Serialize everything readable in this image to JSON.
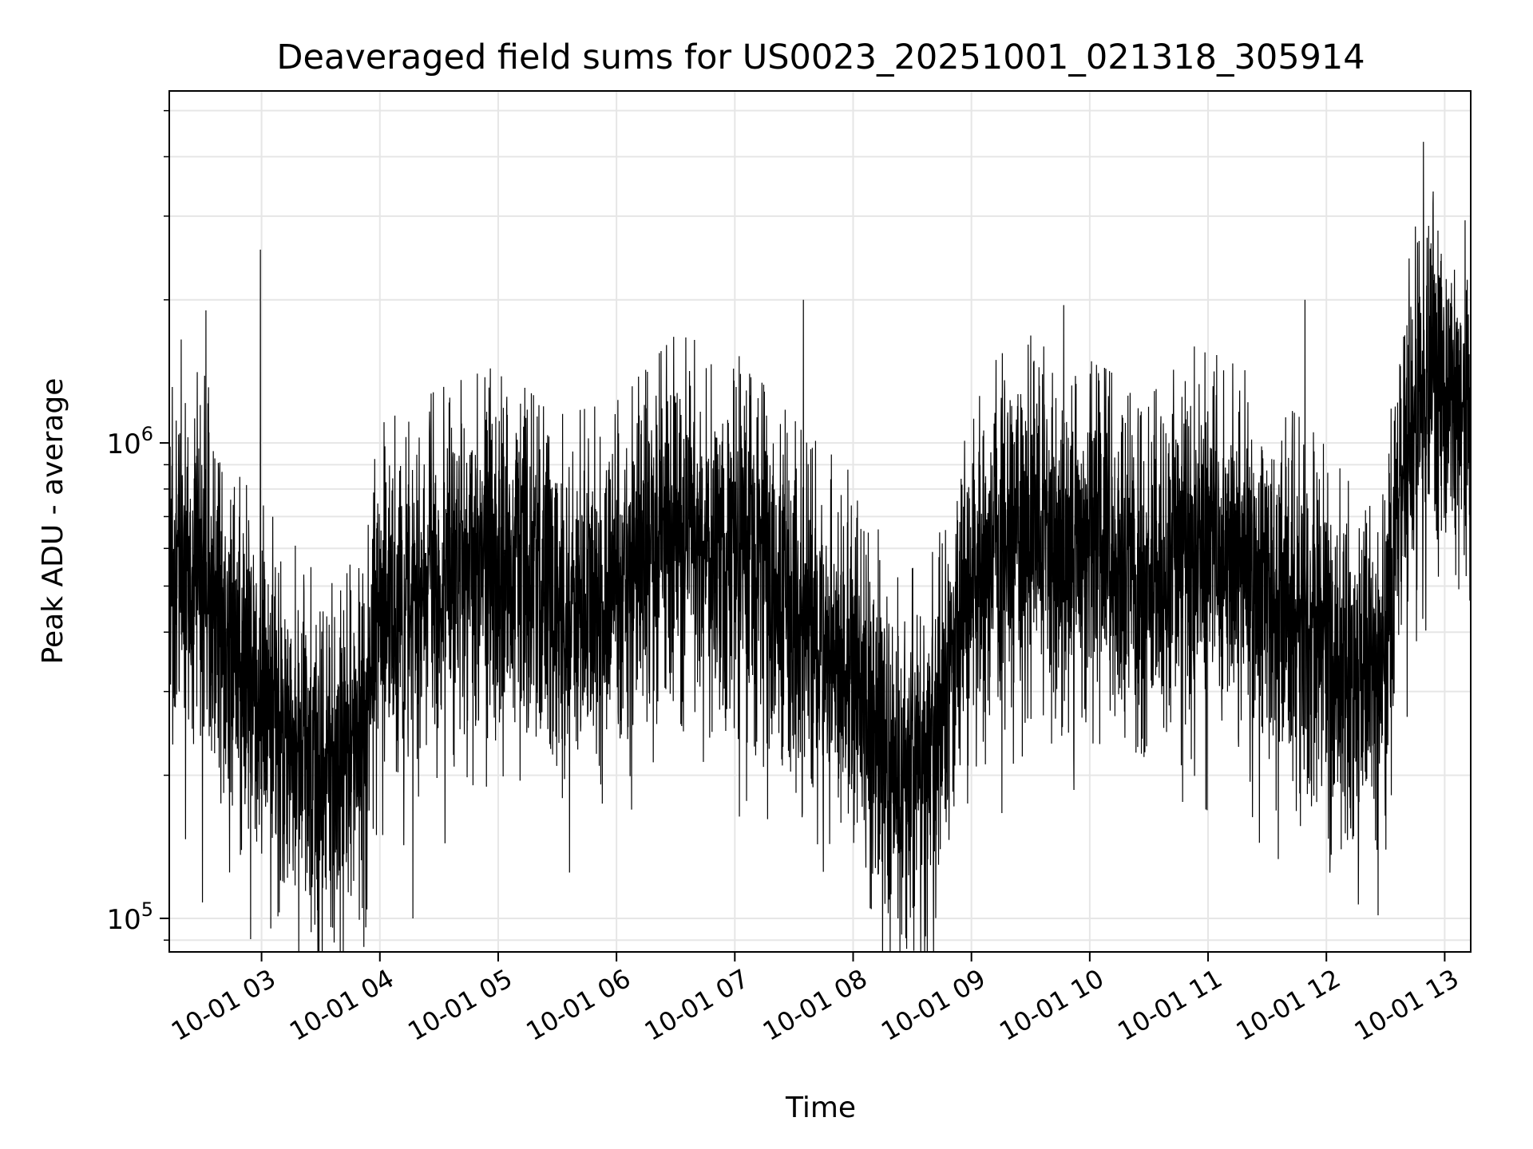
{
  "chart_data": {
    "type": "line",
    "title": "Deaveraged field sums for US0023_20251001_021318_305914",
    "xlabel": "Time",
    "ylabel": "Peak ADU - average",
    "yscale": "log",
    "ylim": [
      85000,
      5500000
    ],
    "xlim_hours": [
      2.22,
      13.22
    ],
    "grid": true,
    "line_color": "#000000",
    "grid_color": "#e6e6e6",
    "x_ticks": [
      {
        "hour": 3,
        "label": "10-01 03"
      },
      {
        "hour": 4,
        "label": "10-01 04"
      },
      {
        "hour": 5,
        "label": "10-01 05"
      },
      {
        "hour": 6,
        "label": "10-01 06"
      },
      {
        "hour": 7,
        "label": "10-01 07"
      },
      {
        "hour": 8,
        "label": "10-01 08"
      },
      {
        "hour": 9,
        "label": "10-01 09"
      },
      {
        "hour": 10,
        "label": "10-01 10"
      },
      {
        "hour": 11,
        "label": "10-01 11"
      },
      {
        "hour": 12,
        "label": "10-01 12"
      },
      {
        "hour": 13,
        "label": "10-01 13"
      }
    ],
    "y_ticks": [
      {
        "value": 100000,
        "base": "10",
        "exp": "5"
      },
      {
        "value": 1000000,
        "base": "10",
        "exp": "6"
      }
    ],
    "series": [
      {
        "name": "deaveraged field sums",
        "style": "dense noisy trace, ~6000 samples",
        "baseline_profile": [
          {
            "hour": 2.22,
            "value": 500000
          },
          {
            "hour": 2.5,
            "value": 550000
          },
          {
            "hour": 2.8,
            "value": 330000
          },
          {
            "hour": 3.2,
            "value": 250000
          },
          {
            "hour": 3.55,
            "value": 190000
          },
          {
            "hour": 3.8,
            "value": 220000
          },
          {
            "hour": 4.0,
            "value": 420000
          },
          {
            "hour": 4.5,
            "value": 500000
          },
          {
            "hour": 5.0,
            "value": 560000
          },
          {
            "hour": 5.5,
            "value": 440000
          },
          {
            "hour": 6.0,
            "value": 470000
          },
          {
            "hour": 6.5,
            "value": 650000
          },
          {
            "hour": 7.0,
            "value": 600000
          },
          {
            "hour": 7.5,
            "value": 430000
          },
          {
            "hour": 8.0,
            "value": 330000
          },
          {
            "hour": 8.4,
            "value": 200000
          },
          {
            "hour": 8.7,
            "value": 230000
          },
          {
            "hour": 9.0,
            "value": 500000
          },
          {
            "hour": 9.5,
            "value": 700000
          },
          {
            "hour": 10.0,
            "value": 580000
          },
          {
            "hour": 10.5,
            "value": 480000
          },
          {
            "hour": 10.9,
            "value": 620000
          },
          {
            "hour": 11.3,
            "value": 550000
          },
          {
            "hour": 11.8,
            "value": 430000
          },
          {
            "hour": 12.2,
            "value": 330000
          },
          {
            "hour": 12.45,
            "value": 320000
          },
          {
            "hour": 12.6,
            "value": 750000
          },
          {
            "hour": 12.85,
            "value": 1400000
          },
          {
            "hour": 13.0,
            "value": 1350000
          },
          {
            "hour": 13.22,
            "value": 1100000
          }
        ],
        "spikes": [
          {
            "hour": 2.32,
            "value": 1650000
          },
          {
            "hour": 2.53,
            "value": 1900000
          },
          {
            "hour": 2.99,
            "value": 2550000
          },
          {
            "hour": 7.58,
            "value": 2000000
          },
          {
            "hour": 9.78,
            "value": 1950000
          },
          {
            "hour": 11.82,
            "value": 2000000
          },
          {
            "hour": 12.82,
            "value": 4300000
          },
          {
            "hour": 12.97,
            "value": 2500000
          }
        ],
        "dips": [
          {
            "hour": 2.5,
            "value": 108000
          },
          {
            "hour": 3.45,
            "value": 97000
          },
          {
            "hour": 4.28,
            "value": 100000
          },
          {
            "hour": 8.38,
            "value": 100000
          },
          {
            "hour": 12.27,
            "value": 107000
          }
        ]
      }
    ]
  }
}
